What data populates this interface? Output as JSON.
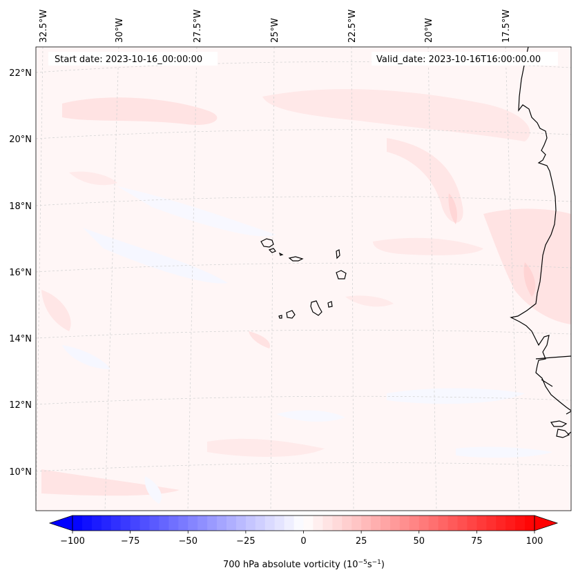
{
  "header": {
    "start_date": "Start date: 2023-10-16_00:00:00",
    "valid_date": "Valid_date: 2023-10-16T16:00:00.00"
  },
  "lon_labels": [
    "32.5°W",
    "30°W",
    "27.5°W",
    "25°W",
    "22.5°W",
    "20°W",
    "17.5°W"
  ],
  "lat_labels": [
    "22°N",
    "20°N",
    "18°N",
    "16°N",
    "14°N",
    "12°N",
    "10°N"
  ],
  "colorbar": {
    "label_main": "700 hPa absolute vorticity (10",
    "label_exp1": "−5",
    "label_mid": "s",
    "label_exp2": "−1",
    "label_end": ")",
    "ticks": [
      "−100",
      "−75",
      "−50",
      "−25",
      "0",
      "25",
      "50",
      "75",
      "100"
    ],
    "min": -100,
    "max": 100,
    "levels": 48,
    "low_color": "#0000ff",
    "mid_color": "#ffffff",
    "high_color": "#ff0000"
  },
  "map": {
    "background_color": "#fff6f6",
    "coast_color": "#000000",
    "grid": true
  }
}
